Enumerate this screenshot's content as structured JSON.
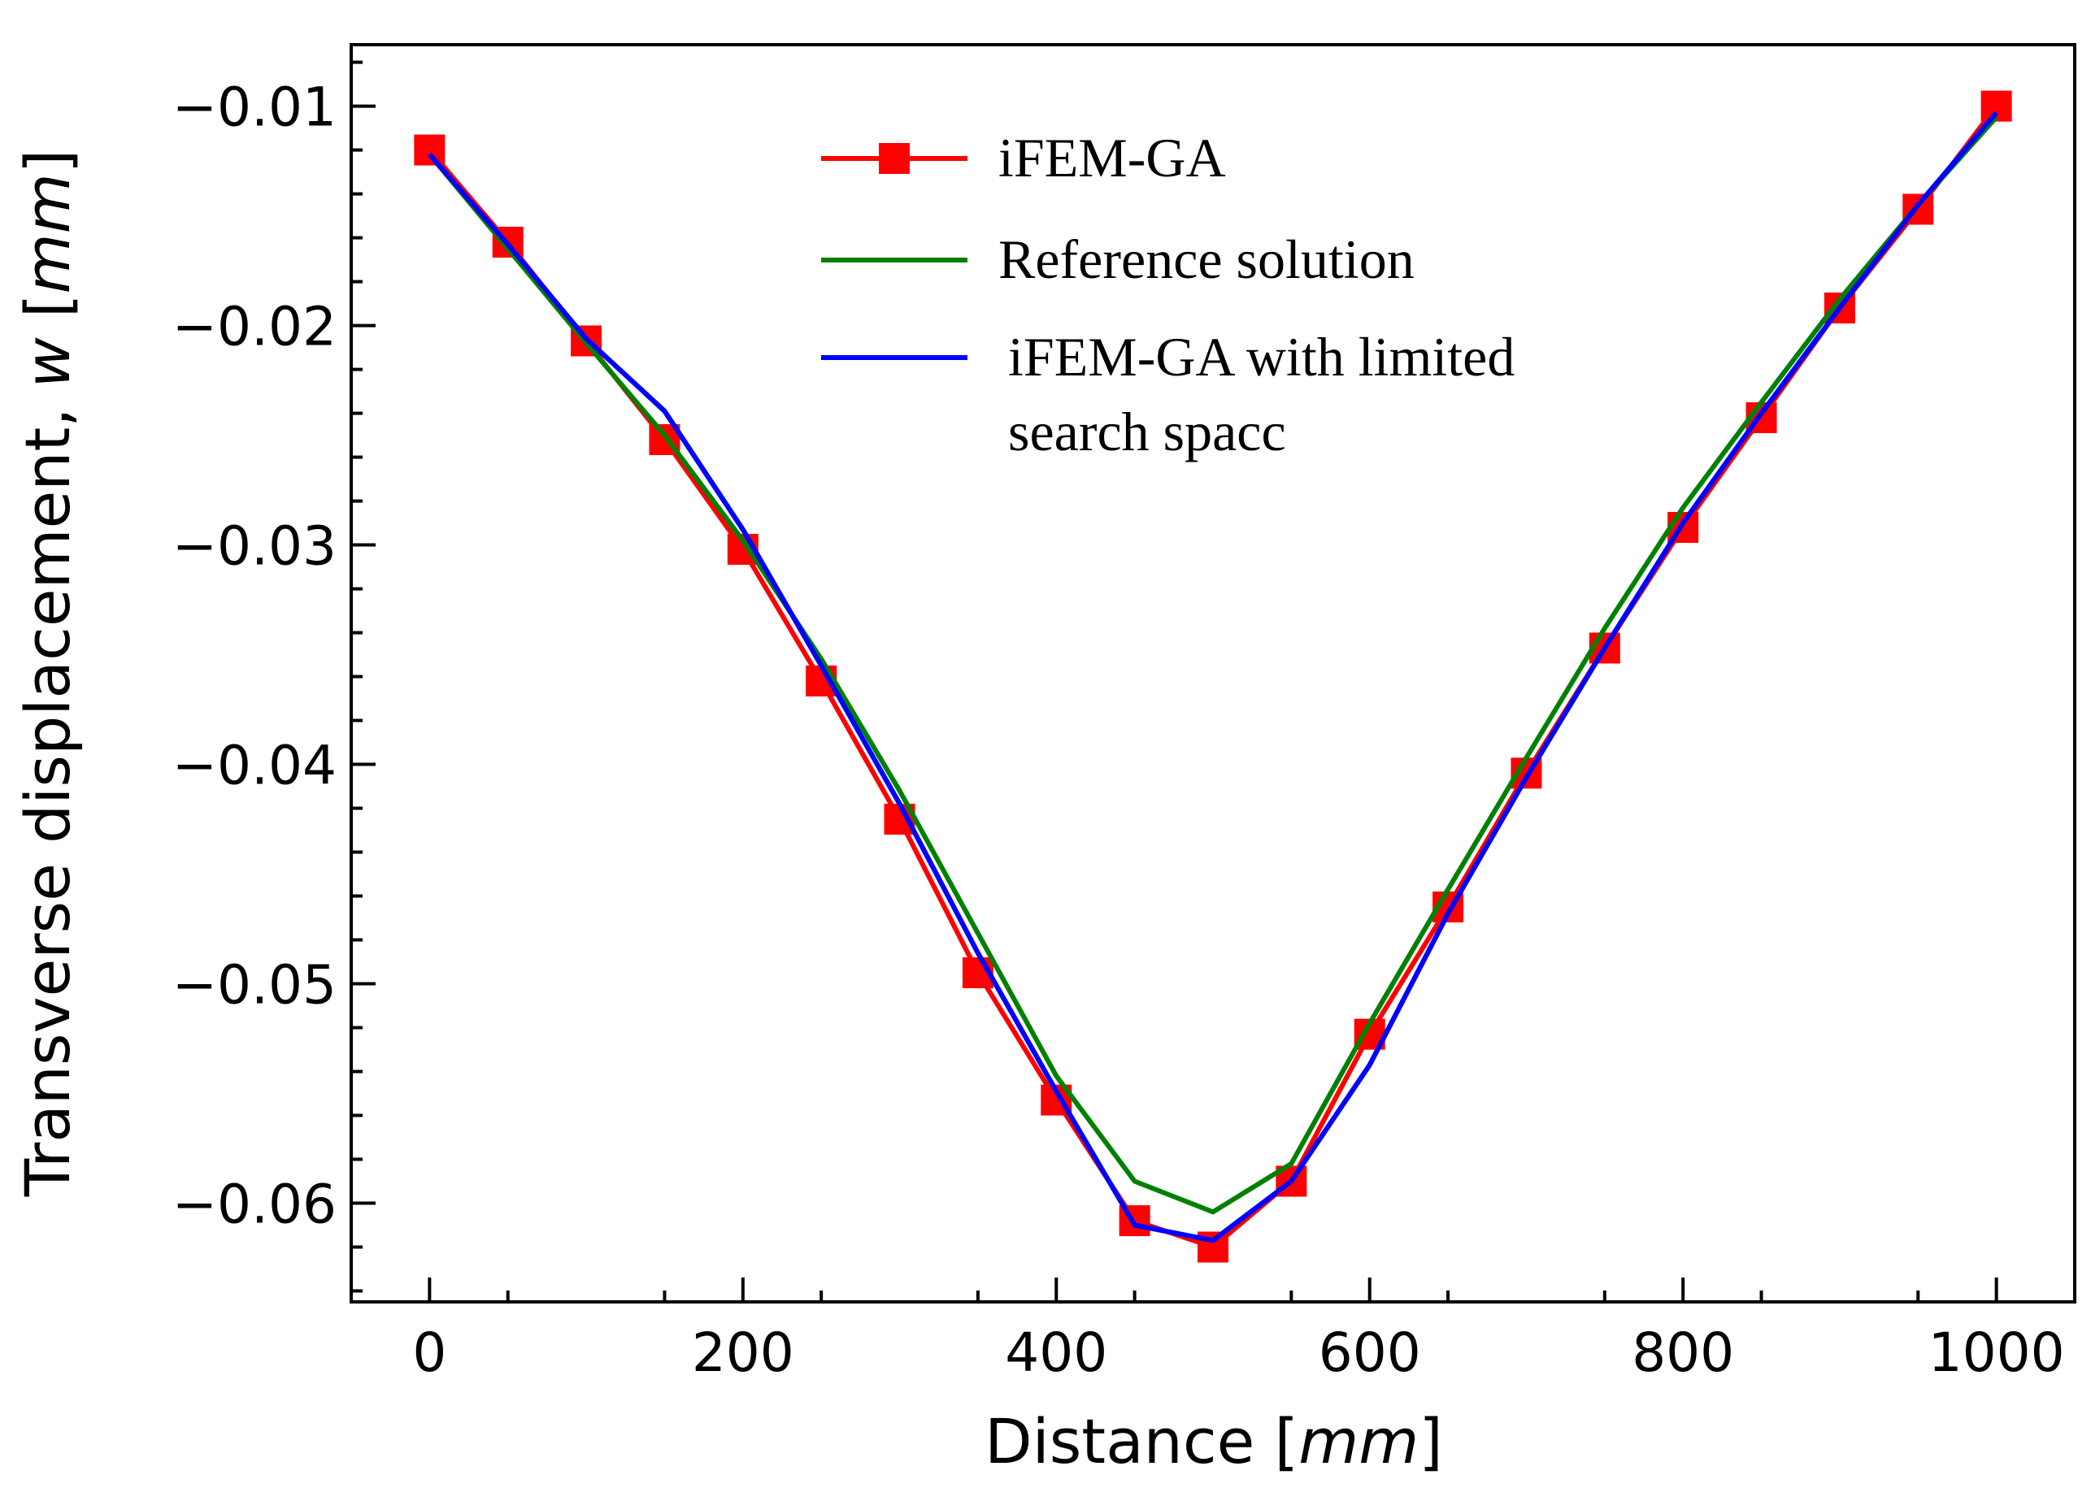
{
  "chart_data": {
    "type": "line",
    "xlabel": {
      "text": "Distance [",
      "unit": "mm",
      "close": "]"
    },
    "ylabel": {
      "text": "Transverse displacement, ",
      "var": "w",
      "open": " [",
      "unit": "mm",
      "close": "]"
    },
    "xlim": [
      -50,
      1050
    ],
    "ylim": [
      -0.0645,
      -0.0072
    ],
    "x_ticks": [
      0,
      200,
      400,
      600,
      800,
      1000
    ],
    "x_tick_labels": [
      "0",
      "200",
      "400",
      "600",
      "800",
      "1000"
    ],
    "y_ticks": [
      -0.01,
      -0.02,
      -0.03,
      -0.04,
      -0.05,
      -0.06
    ],
    "y_tick_labels": [
      "−0.01",
      "−0.02",
      "−0.03",
      "−0.04",
      "−0.05",
      "−0.06"
    ],
    "legend_position": "top-center",
    "series": [
      {
        "name": "iFEM-GA",
        "color": "#ff0000",
        "marker": "square",
        "x": [
          0,
          50,
          100,
          150,
          200,
          250,
          300,
          350,
          400,
          450,
          500,
          550,
          600,
          650,
          700,
          750,
          800,
          850,
          900,
          950,
          1000
        ],
        "y": [
          -0.012,
          -0.0162,
          -0.0207,
          -0.0252,
          -0.0302,
          -0.0362,
          -0.0425,
          -0.0495,
          -0.0553,
          -0.0608,
          -0.062,
          -0.059,
          -0.0523,
          -0.0465,
          -0.0404,
          -0.0347,
          -0.0292,
          -0.0242,
          -0.0192,
          -0.0147,
          -0.01
        ]
      },
      {
        "name": "Reference solution",
        "color": "#008000",
        "marker": "none",
        "x": [
          0,
          100,
          150,
          200,
          250,
          300,
          350,
          400,
          450,
          500,
          550,
          600,
          650,
          700,
          750,
          800,
          850,
          900,
          950,
          1000
        ],
        "y": [
          -0.0122,
          -0.0208,
          -0.025,
          -0.0298,
          -0.0352,
          -0.0412,
          -0.0477,
          -0.0542,
          -0.059,
          -0.0604,
          -0.0582,
          -0.0518,
          -0.0457,
          -0.0397,
          -0.0338,
          -0.0283,
          -0.0235,
          -0.0188,
          -0.0145,
          -0.0105
        ]
      },
      {
        "name": "iFEM-GA with limited search spacc",
        "legend_lines": [
          "iFEM-GA with limited",
          "search spacc"
        ],
        "color": "#0000ff",
        "marker": "none",
        "x": [
          0,
          50,
          100,
          150,
          200,
          250,
          300,
          350,
          400,
          450,
          500,
          550,
          600,
          650,
          700,
          750,
          800,
          850,
          900,
          950,
          1000
        ],
        "y": [
          -0.0122,
          -0.0163,
          -0.0206,
          -0.0239,
          -0.0293,
          -0.0355,
          -0.0418,
          -0.0486,
          -0.0549,
          -0.061,
          -0.0617,
          -0.059,
          -0.0537,
          -0.0468,
          -0.0406,
          -0.0347,
          -0.029,
          -0.024,
          -0.0192,
          -0.0145,
          -0.0103
        ]
      }
    ]
  }
}
